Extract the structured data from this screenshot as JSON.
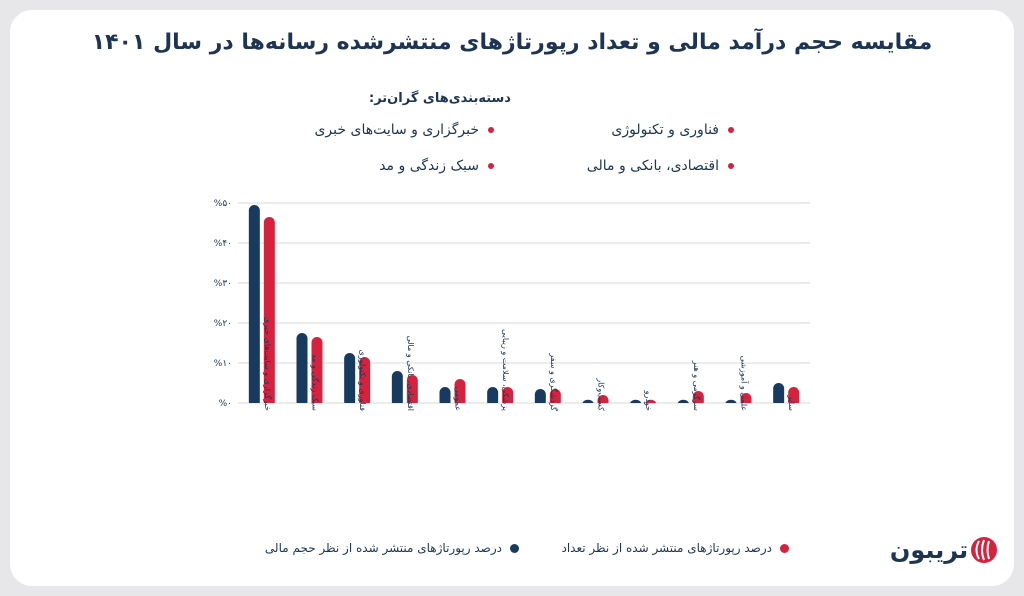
{
  "title": "مقایسه حجم درآمد مالی و تعداد رپورتاژهای منتشرشده رسانه‌ها در سال ۱۴۰۱",
  "top_categories": {
    "heading": "دسته‌بندی‌های گران‌تر:",
    "items": [
      "فناوری و تکنولوژی",
      "خبرگزاری و سایت‌های خبری",
      "اقتصادی، بانکی و مالی",
      "سبک زندگی و مد"
    ]
  },
  "colors": {
    "financial": "#173a5e",
    "count": "#d5233f",
    "grid": "#d5d8dd"
  },
  "brand": {
    "logo_text": "تریبون",
    "logo_icon": "tribune-logo-icon"
  },
  "chart_data": {
    "type": "bar",
    "title": "مقایسه حجم درآمد مالی و تعداد رپورتاژهای منتشرشده رسانه‌ها در سال ۱۴۰۱",
    "xlabel": "",
    "ylabel": "",
    "ylim": [
      0,
      50
    ],
    "yticks": [
      0,
      10,
      20,
      30,
      40,
      50
    ],
    "ytick_labels": [
      "%۰",
      "%۱۰",
      "%۲۰",
      "%۳۰",
      "%۴۰",
      "%۵۰"
    ],
    "grid": true,
    "legend_position": "bottom",
    "categories": [
      "خبرگزاری و سایت‌های خبری",
      "سبک زندگی و مد",
      "فناوری و تکنولوژی",
      "اقتصادی، بانکی و مالی",
      "عمومی",
      "پزشکی، سلامت و زیبایی",
      "گردشگری و سفر",
      "کسب‌وکار",
      "خودرو",
      "سرگرمی و هنر",
      "علمی و آموزشی",
      "سایر"
    ],
    "series": [
      {
        "name": "درصد رپورتاژهای منتشر شده از نظر حجم مالی",
        "values": [
          49.5,
          17.5,
          12.5,
          8,
          4,
          4,
          3.5,
          0.8,
          0.8,
          0.8,
          0.8,
          5
        ]
      },
      {
        "name": "درصد رپورتاژهای منتشر شده از نظر تعداد",
        "values": [
          46.5,
          16.5,
          11.5,
          7,
          6,
          4,
          3.5,
          2,
          0.8,
          3,
          2.5,
          4
        ]
      }
    ]
  }
}
